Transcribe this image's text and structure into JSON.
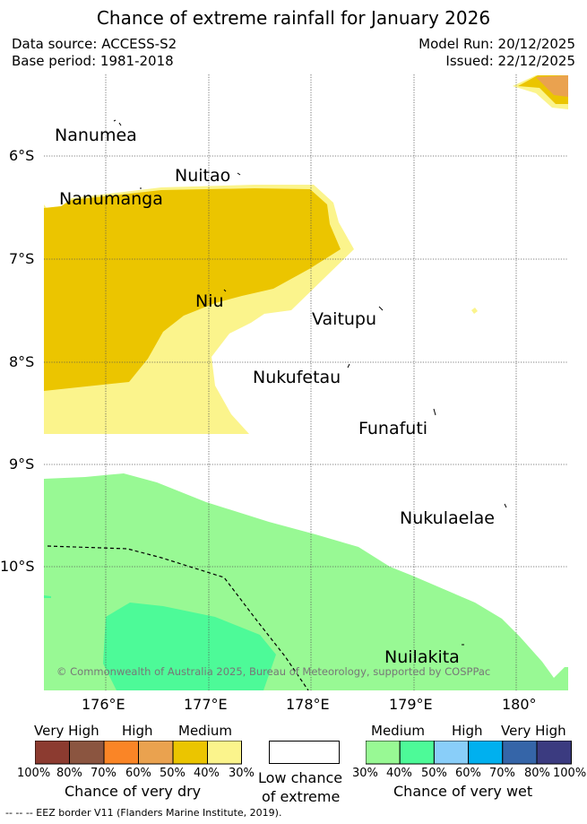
{
  "header": {
    "title": "Chance of extreme rainfall for January 2026",
    "data_source": "Data source: ACCESS-S2",
    "base_period": "Base period: 1981-2018",
    "model_run": "Model Run: 20/12/2025",
    "issued": "Issued: 22/12/2025"
  },
  "map": {
    "lat_labels": [
      "6°S",
      "7°S",
      "8°S",
      "9°S",
      "10°S"
    ],
    "lon_labels": [
      "176°E",
      "177°E",
      "178°E",
      "179°E",
      "180°"
    ],
    "places": [
      "Nanumea",
      "Nuitao",
      "Nanumanga",
      "Niu",
      "Vaitupu",
      "Nukufetau",
      "Funafuti",
      "Nukulaelae",
      "Nuilakita"
    ],
    "copyright": "© Commonwealth of Australia 2025, Bureau of Meteorology, supported by COSPPac"
  },
  "legend": {
    "dry": {
      "category_labels": [
        "Very High",
        "High",
        "Medium"
      ],
      "colors": [
        "#8c3b30",
        "#8b5540",
        "#fa8526",
        "#eaa24f",
        "#ebc500",
        "#fbf48c"
      ],
      "ticks": [
        "100%",
        "80%",
        "70%",
        "60%",
        "50%",
        "40%",
        "30%"
      ],
      "caption": "Chance of very dry"
    },
    "low": {
      "caption_line1": "Low chance",
      "caption_line2": "of extreme"
    },
    "wet": {
      "category_labels": [
        "Medium",
        "High",
        "Very High"
      ],
      "colors": [
        "#98f994",
        "#4dfa98",
        "#89cef9",
        "#00b0ef",
        "#3565a8",
        "#3b3b80"
      ],
      "ticks": [
        "30%",
        "40%",
        "50%",
        "60%",
        "70%",
        "80%",
        "100%"
      ],
      "caption": "Chance of very wet"
    }
  },
  "footer": {
    "eez": "-- -- -- EEZ border V11 (Flanders Marine Institute, 2019)."
  }
}
